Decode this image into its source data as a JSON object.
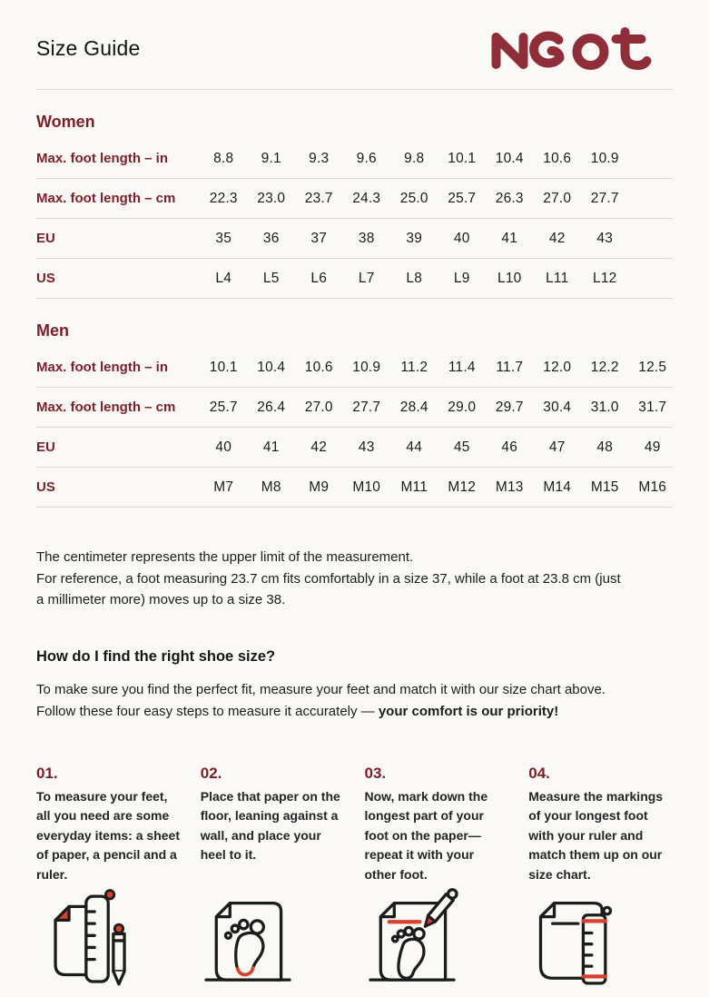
{
  "page": {
    "title": "Size Guide",
    "brand": "Naot"
  },
  "colors": {
    "maroon_text": "#7e1e27",
    "logo_maroon": "#8f2e38",
    "accent_red": "#d7412d",
    "ink": "#1c1c1c",
    "background": "#faf9f6",
    "divider": "#ddd8d2"
  },
  "tables": [
    {
      "section": "Women",
      "rows": [
        {
          "label": "Max. foot length – in",
          "values": [
            "8.8",
            "9.1",
            "9.3",
            "9.6",
            "9.8",
            "10.1",
            "10.4",
            "10.6",
            "10.9"
          ]
        },
        {
          "label": "Max. foot length – cm",
          "values": [
            "22.3",
            "23.0",
            "23.7",
            "24.3",
            "25.0",
            "25.7",
            "26.3",
            "27.0",
            "27.7"
          ]
        },
        {
          "label": "EU",
          "values": [
            "35",
            "36",
            "37",
            "38",
            "39",
            "40",
            "41",
            "42",
            "43"
          ]
        },
        {
          "label": "US",
          "values": [
            "L4",
            "L5",
            "L6",
            "L7",
            "L8",
            "L9",
            "L10",
            "L11",
            "L12"
          ]
        }
      ]
    },
    {
      "section": "Men",
      "rows": [
        {
          "label": "Max. foot length – in",
          "values": [
            "10.1",
            "10.4",
            "10.6",
            "10.9",
            "11.2",
            "11.4",
            "11.7",
            "12.0",
            "12.2",
            "12.5"
          ]
        },
        {
          "label": "Max. foot length – cm",
          "values": [
            "25.7",
            "26.4",
            "27.0",
            "27.7",
            "28.4",
            "29.0",
            "29.7",
            "30.4",
            "31.0",
            "31.7"
          ]
        },
        {
          "label": "EU",
          "values": [
            "40",
            "41",
            "42",
            "43",
            "44",
            "45",
            "46",
            "47",
            "48",
            "49"
          ]
        },
        {
          "label": "US",
          "values": [
            "M7",
            "M8",
            "M9",
            "M10",
            "M11",
            "M12",
            "M13",
            "M14",
            "M15",
            "M16"
          ]
        }
      ]
    }
  ],
  "notes": {
    "line1": "The centimeter represents the upper limit of the measurement.",
    "line2": "For reference, a foot measuring 23.7 cm fits comfortably in a size 37, while a foot at 23.8 cm (just a millimeter more) moves up to a size 38."
  },
  "how_to": {
    "heading": "How do I find the right shoe size?",
    "intro_regular": "To make sure you find the perfect fit, measure your feet and match it with our size chart above. Follow these four easy steps to measure it accurately — ",
    "intro_bold": "your comfort is our priority!"
  },
  "steps": [
    {
      "number": "01.",
      "text": "To measure your feet, all you need are some everyday items: a sheet of paper, a pencil and a ruler.",
      "icon": "paper-ruler-pencil-icon"
    },
    {
      "number": "02.",
      "text": "Place that paper on the floor, leaning against a wall, and place your heel to it.",
      "icon": "paper-footprint-heel-icon"
    },
    {
      "number": "03.",
      "text": "Now, mark down the longest part of your foot on the paper—repeat it with your other foot.",
      "icon": "paper-footprint-pencil-mark-icon"
    },
    {
      "number": "04.",
      "text": "Measure the markings of your longest foot with your ruler and match them up on our size chart.",
      "icon": "paper-ruler-marks-icon"
    }
  ]
}
